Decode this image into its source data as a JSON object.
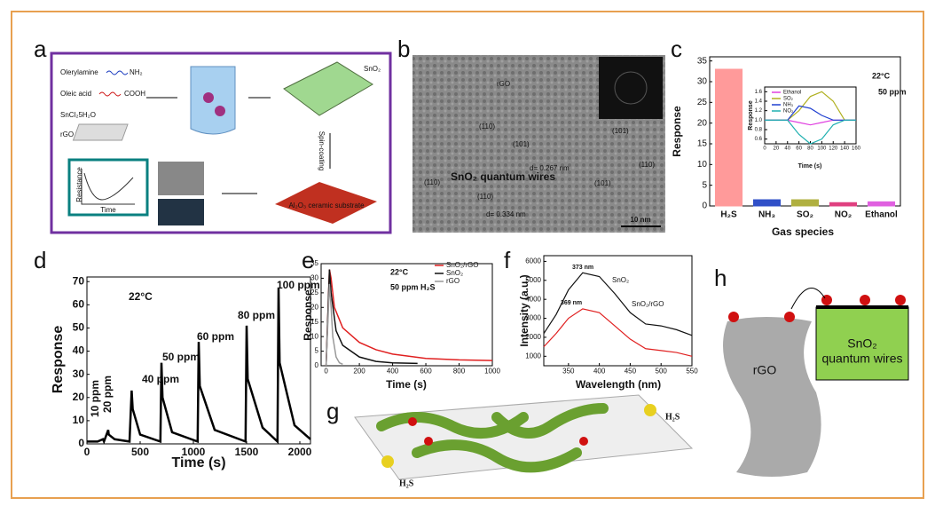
{
  "panels": {
    "a": {
      "label": "a",
      "texts": [
        "Olerylamine",
        "NH₂",
        "Oleic acid",
        "COOH",
        "SnCl₂5H₂O",
        "rGO",
        "SnO₂",
        "Spin-coating",
        "Al₂O₃ ceramic substrate",
        "Resistance",
        "Time"
      ]
    },
    "b": {
      "label": "b",
      "texts": [
        "rGO",
        "(110)",
        "(101)",
        "d= 0.267 nm",
        "SnO₂ quantum wires",
        "(110)",
        "(110)",
        "d= 0.334 nm",
        "(101)",
        "(101)",
        "(110)",
        "10 nm"
      ]
    },
    "c": {
      "label": "c"
    },
    "d": {
      "label": "d"
    },
    "e": {
      "label": "e"
    },
    "f": {
      "label": "f"
    },
    "g": {
      "label": "g",
      "texts": [
        "H₂S",
        "H₂S"
      ]
    },
    "h": {
      "label": "h",
      "texts": [
        "rGO",
        "SnO₂",
        "quantum wires"
      ]
    }
  },
  "chart_data": [
    {
      "type": "bar",
      "categories": [
        "H₂S",
        "NH₃",
        "SO₂",
        "NO₂",
        "Ethanol"
      ],
      "values": [
        33,
        1.5,
        1.5,
        0.8,
        1
      ],
      "colors": [
        "#ff9a9a",
        "#3050c8",
        "#b0b040",
        "#e04080",
        "#e060e0"
      ],
      "ylim": [
        0,
        36
      ],
      "yticks": [
        0,
        5,
        10,
        15,
        20,
        25,
        30,
        35
      ],
      "x_label": "Gas species",
      "y_label": "Response",
      "annotations": [
        "22°C",
        "50 ppm"
      ]
    },
    {
      "type": "line",
      "x": [
        0,
        20,
        40,
        60,
        80,
        100,
        120,
        140,
        160
      ],
      "series": [
        {
          "name": "Ethanol",
          "color": "#e040e0",
          "values": [
            1,
            1,
            1,
            0.95,
            0.9,
            0.95,
            1,
            1,
            1
          ]
        },
        {
          "name": "SO₂",
          "color": "#b0b020",
          "values": [
            1,
            1,
            1,
            1.2,
            1.5,
            1.6,
            1.4,
            1,
            1
          ]
        },
        {
          "name": "NH₃",
          "color": "#2040d0",
          "values": [
            1,
            1,
            1,
            1.3,
            1.25,
            1.1,
            1,
            1,
            1
          ]
        },
        {
          "name": "NO₂",
          "color": "#20b0b0",
          "values": [
            1,
            1,
            1,
            0.7,
            0.5,
            0.6,
            0.9,
            1,
            1
          ]
        }
      ],
      "xlim": [
        0,
        160
      ],
      "ylim": [
        0.5,
        1.7
      ],
      "xticks": [
        0,
        20,
        40,
        60,
        80,
        100,
        120,
        140,
        160
      ],
      "yticks": [
        0.6,
        0.8,
        {
          "value": 1,
          "label": "1.0"
        },
        1.2,
        1.4,
        1.6
      ],
      "x_label": "Time (s)",
      "y_label": "Response"
    },
    {
      "type": "line",
      "x": [
        0,
        100,
        150,
        160,
        200,
        205,
        260,
        400,
        420,
        430,
        500,
        690,
        700,
        710,
        800,
        1040,
        1050,
        1060,
        1200,
        1490,
        1500,
        1510,
        1650,
        1790,
        1800,
        1810,
        1950,
        2100
      ],
      "series": [
        {
          "color": "#000000",
          "values": [
            1,
            1,
            2,
            1,
            6,
            4,
            2,
            1,
            23,
            15,
            4,
            1,
            35,
            20,
            5,
            1,
            44,
            25,
            6,
            1,
            51,
            28,
            7,
            1,
            67,
            35,
            8,
            2
          ]
        }
      ],
      "xlim": [
        0,
        2100
      ],
      "ylim": [
        0,
        72
      ],
      "xticks": [
        0,
        500,
        1000,
        1500,
        2000
      ],
      "yticks": [
        0,
        10,
        20,
        30,
        40,
        50,
        60,
        70
      ],
      "x_label": "Time (s)",
      "y_label": "Response",
      "annotations": [
        "22°C",
        "10 ppm",
        "20 ppm",
        "40 ppm",
        "50 ppm",
        "60 ppm",
        "80 ppm",
        "100 ppm"
      ]
    },
    {
      "type": "multi-x-line",
      "series": [
        {
          "name": "SnO₂/rGO",
          "color": "#e02020",
          "x": [
            0,
            20,
            30,
            50,
            100,
            200,
            300,
            400,
            600,
            800,
            1000
          ],
          "values": [
            0,
            33,
            30,
            20,
            13,
            8,
            5.5,
            4,
            2.5,
            2,
            1.8
          ]
        },
        {
          "name": "SnO₂",
          "color": "#111111",
          "x": [
            0,
            20,
            30,
            60,
            100,
            200,
            300,
            400,
            550
          ],
          "values": [
            0,
            33,
            25,
            12,
            7,
            3,
            1.5,
            1,
            0.8
          ]
        },
        {
          "name": "rGO",
          "color": "#999999",
          "x": [
            0,
            20,
            30,
            40,
            60,
            80,
            100
          ],
          "values": [
            0,
            28,
            20,
            10,
            3,
            1,
            0.5
          ]
        }
      ],
      "xlim": [
        -30,
        1000
      ],
      "ylim": [
        0,
        35
      ],
      "xticks": [
        0,
        200,
        400,
        600,
        800,
        1000
      ],
      "yticks": [
        0,
        5,
        10,
        15,
        20,
        25,
        30,
        35
      ],
      "x_label": "Time (s)",
      "y_label": "Response",
      "annotations": [
        "22°C",
        "50 ppm H₂S"
      ]
    },
    {
      "type": "line",
      "x": [
        310,
        330,
        350,
        373,
        400,
        425,
        450,
        475,
        500,
        525,
        550
      ],
      "series": [
        {
          "name": "SnO₂",
          "color": "#111111",
          "values": [
            2200,
            3200,
            4500,
            5400,
            5200,
            4300,
            3300,
            2700,
            2600,
            2400,
            2100
          ]
        },
        {
          "name": "SnO₂/rGO",
          "color": "#e02020",
          "values": [
            1500,
            2200,
            3000,
            3500,
            3300,
            2600,
            1900,
            1400,
            1300,
            1200,
            1000
          ]
        }
      ],
      "xlim": [
        310,
        550
      ],
      "ylim": [
        500,
        6300
      ],
      "xticks": [
        350,
        400,
        450,
        500,
        550
      ],
      "yticks": [
        1000,
        2000,
        3000,
        4000,
        5000,
        6000
      ],
      "x_label": "Wavelength (nm)",
      "y_label": "Intensity (a.u.)",
      "annotations": [
        "373 nm",
        "369 nm"
      ]
    }
  ]
}
